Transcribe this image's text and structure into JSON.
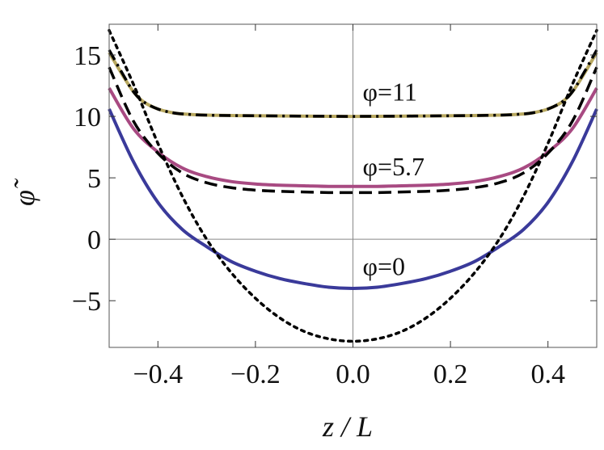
{
  "chart_data": {
    "type": "line",
    "xlabel": "z / L",
    "ylabel": "φ̃",
    "xlim": [
      -0.5,
      0.5
    ],
    "ylim": [
      -8.8,
      17.5
    ],
    "grid": false,
    "x_ticks": [
      -0.4,
      -0.2,
      0.0,
      0.2,
      0.4
    ],
    "x_tick_labels": [
      "−0.4",
      "−0.2",
      "0.0",
      "0.2",
      "0.4"
    ],
    "y_ticks": [
      15,
      10,
      5,
      0,
      -5
    ],
    "y_tick_labels": [
      "15",
      "10",
      "5",
      "0",
      "−5"
    ],
    "zero_lines": {
      "x": 0,
      "y": 0
    },
    "annotations": [
      {
        "text": "φ=11",
        "x": 0.01,
        "y": 11.3
      },
      {
        "text": "φ=5.7",
        "x": 0.01,
        "y": 5.2
      },
      {
        "text": "φ=0",
        "x": 0.01,
        "y": -2.9
      }
    ],
    "series": [
      {
        "label_ref": "φ=0",
        "color": "#3a3a9a",
        "style": "solid",
        "x": [
          -0.5,
          -0.45,
          -0.4,
          -0.35,
          -0.3,
          -0.25,
          -0.2,
          -0.15,
          -0.1,
          -0.05,
          0.0,
          0.05,
          0.1,
          0.15,
          0.2,
          0.25,
          0.3,
          0.35,
          0.4,
          0.45,
          0.5
        ],
        "values": [
          10.6,
          6.3,
          3.0,
          0.8,
          -0.6,
          -1.8,
          -2.6,
          -3.2,
          -3.6,
          -3.9,
          -4.0,
          -3.9,
          -3.6,
          -3.2,
          -2.6,
          -1.8,
          -0.6,
          0.8,
          3.0,
          6.3,
          10.6
        ]
      },
      {
        "label_ref": "φ=5.7",
        "color": "#a84a82",
        "style": "solid",
        "x": [
          -0.5,
          -0.45,
          -0.4,
          -0.35,
          -0.3,
          -0.25,
          -0.2,
          -0.15,
          -0.1,
          -0.05,
          0.0,
          0.05,
          0.1,
          0.15,
          0.2,
          0.25,
          0.3,
          0.35,
          0.4,
          0.45,
          0.5
        ],
        "values": [
          12.3,
          9.0,
          7.1,
          5.8,
          5.1,
          4.7,
          4.5,
          4.4,
          4.35,
          4.3,
          4.3,
          4.3,
          4.35,
          4.4,
          4.5,
          4.7,
          5.1,
          5.8,
          7.1,
          9.0,
          12.3
        ]
      },
      {
        "label_ref": "φ=11",
        "color": "#b8a860",
        "style": "solid",
        "x": [
          -0.5,
          -0.47,
          -0.45,
          -0.43,
          -0.4,
          -0.37,
          -0.35,
          -0.3,
          -0.2,
          -0.1,
          0.0,
          0.1,
          0.2,
          0.3,
          0.35,
          0.37,
          0.4,
          0.43,
          0.45,
          0.47,
          0.5
        ],
        "values": [
          15.2,
          13.2,
          12.0,
          11.2,
          10.6,
          10.3,
          10.2,
          10.1,
          10.05,
          10.02,
          10.0,
          10.02,
          10.05,
          10.1,
          10.2,
          10.3,
          10.6,
          11.2,
          12.0,
          13.2,
          15.2
        ]
      },
      {
        "label_ref": "φ=11 approx",
        "color": "#000000",
        "style": "dashdot",
        "x": [
          -0.5,
          -0.47,
          -0.45,
          -0.43,
          -0.4,
          -0.37,
          -0.35,
          -0.3,
          -0.2,
          -0.1,
          0.0,
          0.1,
          0.2,
          0.3,
          0.35,
          0.37,
          0.4,
          0.43,
          0.45,
          0.47,
          0.5
        ],
        "values": [
          15.4,
          13.3,
          12.0,
          11.2,
          10.6,
          10.3,
          10.2,
          10.1,
          10.05,
          10.02,
          10.0,
          10.02,
          10.05,
          10.1,
          10.2,
          10.3,
          10.6,
          11.2,
          12.0,
          13.3,
          15.4
        ]
      },
      {
        "label_ref": "φ=5.7 approx",
        "color": "#000000",
        "style": "dashed",
        "x": [
          -0.5,
          -0.45,
          -0.4,
          -0.35,
          -0.3,
          -0.25,
          -0.2,
          -0.15,
          -0.1,
          -0.05,
          0.0,
          0.05,
          0.1,
          0.15,
          0.2,
          0.25,
          0.3,
          0.35,
          0.4,
          0.45,
          0.5
        ],
        "values": [
          14.0,
          9.6,
          7.0,
          5.4,
          4.6,
          4.2,
          4.0,
          3.9,
          3.85,
          3.8,
          3.8,
          3.8,
          3.85,
          3.9,
          4.0,
          4.2,
          4.6,
          5.4,
          7.0,
          9.6,
          14.0
        ]
      },
      {
        "label_ref": "φ=0 approx",
        "color": "#000000",
        "style": "dotted",
        "x": [
          -0.5,
          -0.45,
          -0.4,
          -0.35,
          -0.3,
          -0.25,
          -0.2,
          -0.15,
          -0.1,
          -0.05,
          0.0,
          0.05,
          0.1,
          0.15,
          0.2,
          0.25,
          0.3,
          0.35,
          0.4,
          0.45,
          0.5
        ],
        "values": [
          17.0,
          12.6,
          7.8,
          3.5,
          0.0,
          -2.7,
          -4.8,
          -6.4,
          -7.5,
          -8.1,
          -8.3,
          -8.1,
          -7.5,
          -6.4,
          -4.8,
          -2.7,
          0.0,
          3.5,
          7.8,
          12.6,
          17.0
        ]
      }
    ]
  }
}
